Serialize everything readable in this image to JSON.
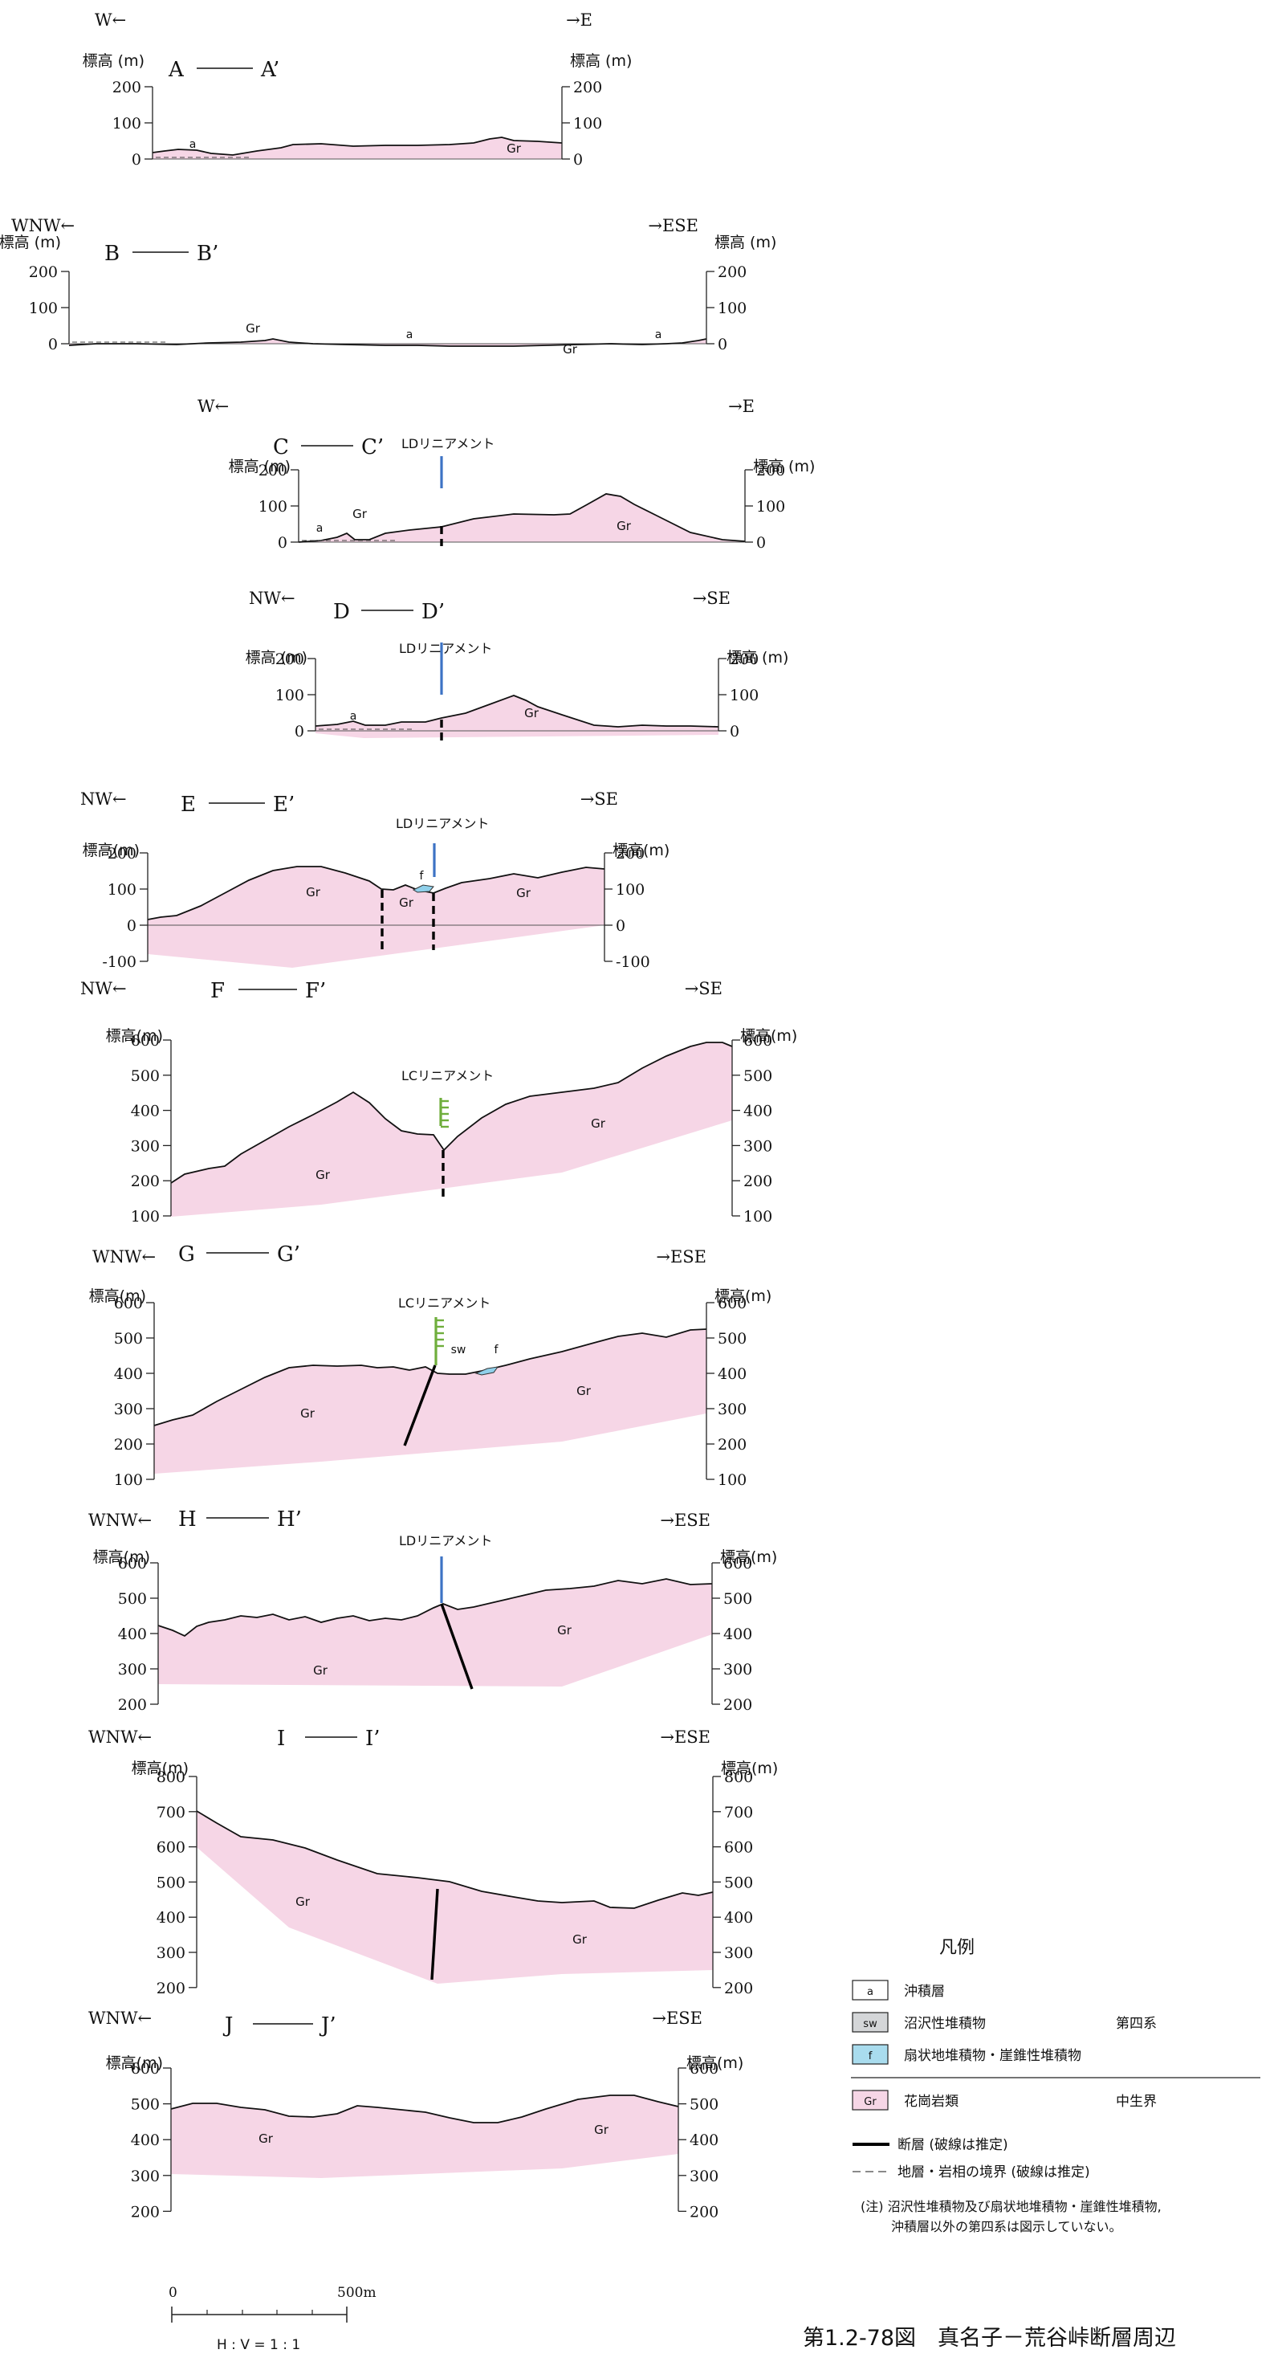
{
  "sections": [
    {
      "id": "A",
      "label_left": "A",
      "label_right": "A’",
      "dir_left": "W",
      "dir_right": "E",
      "axis_title_left": "標高 (m)",
      "axis_title_right": "標高 (m)",
      "ticks": [
        200,
        100,
        0
      ],
      "unit_labels": [
        "a",
        "Gr"
      ],
      "lineament": null
    },
    {
      "id": "B",
      "label_left": "B",
      "label_right": "B’",
      "dir_left": "WNW",
      "dir_right": "ESE",
      "axis_title_left": "標高 (m)",
      "axis_title_right": "標高 (m)",
      "ticks": [
        200,
        100,
        0
      ],
      "unit_labels": [
        "Gr",
        "a",
        "Gr",
        "a"
      ],
      "lineament": null
    },
    {
      "id": "C",
      "label_left": "C",
      "label_right": "C’",
      "dir_left": "W",
      "dir_right": "E",
      "axis_title_left": "標高 (m)",
      "axis_title_right": "標高 (m)",
      "ticks": [
        200,
        100,
        0
      ],
      "unit_labels": [
        "a",
        "Gr",
        "Gr"
      ],
      "lineament": "LDリニアメント"
    },
    {
      "id": "D",
      "label_left": "D",
      "label_right": "D’",
      "dir_left": "NW",
      "dir_right": "SE",
      "axis_title_left": "標高 (m)",
      "axis_title_right": "標高 (m)",
      "ticks": [
        200,
        100,
        0
      ],
      "unit_labels": [
        "a",
        "Gr"
      ],
      "lineament": "LDリニアメント"
    },
    {
      "id": "E",
      "label_left": "E",
      "label_right": "E’",
      "dir_left": "NW",
      "dir_right": "SE",
      "axis_title_left": "標高(m)",
      "axis_title_right": "標高(m)",
      "ticks": [
        200,
        100,
        0,
        -100
      ],
      "unit_labels": [
        "Gr",
        "f",
        "Gr",
        "Gr"
      ],
      "lineament": "LDリニアメント"
    },
    {
      "id": "F",
      "label_left": "F",
      "label_right": "F’",
      "dir_left": "NW",
      "dir_right": "SE",
      "axis_title_left": "標高(m)",
      "axis_title_right": "標高(m)",
      "ticks": [
        600,
        500,
        400,
        300,
        200,
        100
      ],
      "unit_labels": [
        "Gr",
        "Gr"
      ],
      "lineament": "LCリニアメント"
    },
    {
      "id": "G",
      "label_left": "G",
      "label_right": "G’",
      "dir_left": "WNW",
      "dir_right": "ESE",
      "axis_title_left": "標高(m)",
      "axis_title_right": "標高(m)",
      "ticks": [
        600,
        500,
        400,
        300,
        200,
        100
      ],
      "unit_labels": [
        "Gr",
        "sw",
        "f",
        "Gr"
      ],
      "lineament": "LCリニアメント"
    },
    {
      "id": "H",
      "label_left": "H",
      "label_right": "H’",
      "dir_left": "WNW",
      "dir_right": "ESE",
      "axis_title_left": "標高(m)",
      "axis_title_right": "標高(m)",
      "ticks": [
        600,
        500,
        400,
        300,
        200
      ],
      "unit_labels": [
        "Gr",
        "Gr"
      ],
      "lineament": "LDリニアメント"
    },
    {
      "id": "I",
      "label_left": "I",
      "label_right": "I’",
      "dir_left": "WNW",
      "dir_right": "ESE",
      "axis_title_left": "標高(m)",
      "axis_title_right": "標高(m)",
      "ticks": [
        800,
        700,
        600,
        500,
        400,
        300,
        200
      ],
      "unit_labels": [
        "Gr",
        "Gr"
      ],
      "lineament": null
    },
    {
      "id": "J",
      "label_left": "J",
      "label_right": "J’",
      "dir_left": "WNW",
      "dir_right": "ESE",
      "axis_title_left": "標高(m)",
      "axis_title_right": "標高(m)",
      "ticks": [
        600,
        500,
        400,
        300,
        200
      ],
      "unit_labels": [
        "Gr",
        "Gr"
      ],
      "lineament": null
    }
  ],
  "legend": {
    "title": "凡例",
    "items": [
      {
        "code": "a",
        "label": "沖積層",
        "group": ""
      },
      {
        "code": "sw",
        "label": "沼沢性堆積物",
        "group": "第四系"
      },
      {
        "code": "f",
        "label": "扇状地堆積物・崖錐性堆積物",
        "group": ""
      },
      {
        "code": "Gr",
        "label": "花崗岩類",
        "group": "中生界"
      }
    ],
    "line_fault": "断層 (破線は推定)",
    "line_boundary": "地層・岩相の境界 (破線は推定)",
    "note_1": "(注) 沼沢性堆積物及び扇状地堆積物・崖錐性堆積物,",
    "note_2": "沖積層以外の第四系は図示していない。",
    "colors": {
      "a": "#ffffff",
      "sw": "#d4d6d8",
      "f": "#a9dcee",
      "Gr": "#f6d6e6"
    }
  },
  "scale": {
    "zero": "0",
    "end": "500m",
    "ratio": "H : V = 1 : 1"
  },
  "caption": "第1.2-78図　真名子－荒谷峠断層周辺",
  "colors": {
    "granite": "#f6d6e6",
    "lineament_LD": "#3d73c4",
    "lineament_LC": "#6fae3c",
    "fan": "#8fd0ea"
  }
}
